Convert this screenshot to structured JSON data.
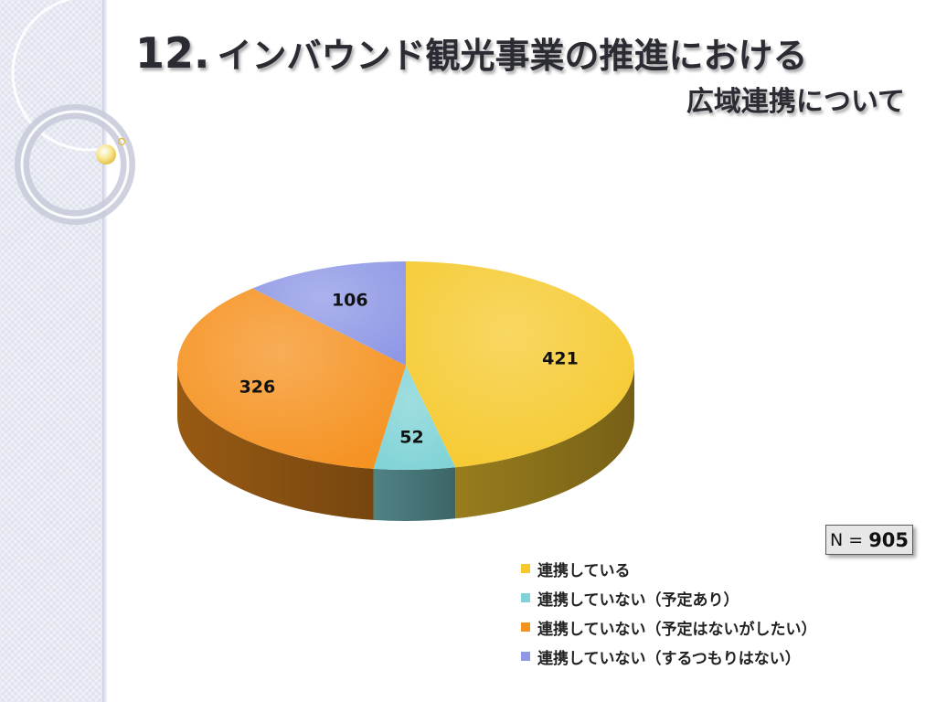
{
  "slide": {
    "title_number": "12.",
    "title_line1": "インバウンド観光事業の推進における",
    "title_line2": "広域連携について"
  },
  "sample": {
    "prefix": "N = ",
    "value": "905"
  },
  "chart_data": {
    "type": "pie",
    "title": "",
    "style": "3d",
    "categories": [
      "連携している",
      "連携していない（予定あり）",
      "連携していない（予定はないがしたい）",
      "連携していない（するつもりはない）"
    ],
    "values": [
      421,
      52,
      326,
      106
    ],
    "value_labels": [
      "421",
      "52",
      "326",
      "106"
    ],
    "colors": [
      "#f5c92e",
      "#7fd3d6",
      "#f5911f",
      "#8f98e6"
    ],
    "legend_position": "bottom-right"
  }
}
